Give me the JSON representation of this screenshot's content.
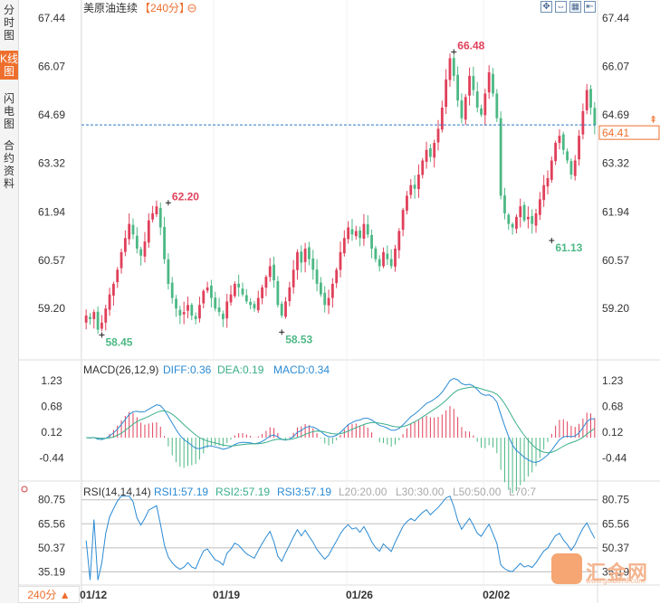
{
  "sidebar": {
    "tabs": [
      {
        "label": "分时图",
        "active": false
      },
      {
        "label": "K线图",
        "active": true
      },
      {
        "label": "闪电图",
        "active": false
      },
      {
        "label": "合约资料",
        "active": false
      }
    ],
    "period_button": "240分 ▲"
  },
  "header": {
    "instrument": "美原油连续",
    "period": "【240分】",
    "period_icon": "circle-minus-icon"
  },
  "toolbar": {
    "icons": [
      "fullscreen-icon",
      "arrows-icon",
      "chart-settings-icon",
      "back-icon"
    ]
  },
  "colors": {
    "up": "#e0405a",
    "down": "#4cb884",
    "accent": "#ee6f2d",
    "diff": "#2a8ad4",
    "dea": "#3aae8a",
    "rsi": "#2a8ad4",
    "price_line": "#2a78c8"
  },
  "logo": {
    "name": "汇金网",
    "url": "www.gold678.com"
  },
  "chart_data": [
    {
      "type": "candlestick",
      "title": "美原油连续【240分】",
      "y_ticks": [
        "67.44",
        "66.07",
        "64.69",
        "63.32",
        "61.94",
        "60.57",
        "59.20"
      ],
      "ylim": [
        58.0,
        67.44
      ],
      "x_ticks": [
        "01/12",
        "01/19",
        "01/26",
        "02/02"
      ],
      "current_price": "64.41",
      "annotations": [
        {
          "label": "58.45",
          "type": "low"
        },
        {
          "label": "62.20",
          "type": "high"
        },
        {
          "label": "58.53",
          "type": "low"
        },
        {
          "label": "66.48",
          "type": "high"
        },
        {
          "label": "61.13",
          "type": "low"
        }
      ],
      "closes": [
        59.0,
        58.9,
        59.1,
        58.6,
        58.8,
        59.2,
        59.6,
        59.9,
        60.3,
        60.8,
        61.2,
        61.6,
        61.3,
        60.9,
        60.7,
        61.1,
        61.7,
        61.9,
        62.1,
        61.5,
        60.6,
        59.9,
        59.5,
        59.2,
        59.0,
        59.1,
        59.3,
        59.0,
        58.9,
        59.3,
        59.7,
        59.8,
        59.5,
        59.2,
        59.1,
        58.9,
        59.4,
        59.6,
        59.9,
        59.8,
        59.6,
        59.4,
        59.3,
        59.2,
        59.5,
        59.8,
        60.1,
        60.4,
        60.0,
        59.3,
        59.0,
        59.4,
        59.8,
        60.3,
        60.8,
        60.5,
        60.9,
        60.6,
        60.3,
        59.9,
        59.6,
        59.3,
        59.5,
        59.9,
        60.3,
        60.8,
        61.2,
        61.5,
        61.3,
        61.4,
        61.2,
        61.6,
        61.3,
        60.9,
        60.6,
        60.4,
        60.8,
        60.6,
        60.4,
        60.9,
        61.4,
        62.0,
        62.4,
        62.7,
        62.6,
        63.0,
        63.4,
        63.7,
        63.5,
        63.9,
        64.3,
        64.9,
        65.7,
        66.3,
        65.8,
        65.1,
        64.6,
        65.2,
        65.8,
        65.4,
        64.9,
        64.7,
        65.3,
        65.9,
        65.3,
        64.6,
        62.4,
        61.9,
        61.6,
        61.5,
        61.8,
        62.1,
        61.7,
        61.8,
        61.6,
        61.9,
        62.3,
        62.7,
        62.9,
        63.4,
        63.9,
        64.1,
        63.7,
        63.4,
        63.0,
        63.4,
        64.1,
        64.8,
        65.4,
        64.9,
        64.41
      ],
      "macd": {
        "label": "MACD(26,12,9)",
        "diff_label": "DIFF:0.36",
        "dea_label": "DEA:0.19",
        "macd_label": "MACD:0.34",
        "y_ticks": [
          "1.23",
          "0.68",
          "0.12",
          "-0.44"
        ],
        "ylim": [
          -0.9,
          1.45
        ]
      },
      "rsi": {
        "label": "RSI(14,14,14)",
        "rsi1_label": "RSI1:57.19",
        "rsi2_label": "RSI2:57.19",
        "rsi3_label": "RSI3:57.19",
        "l20": "L20:20.00",
        "l30": "L30:30.00",
        "l50": "L50:50.00",
        "l70": "L70:7",
        "y_ticks": [
          "80.75",
          "65.56",
          "50.37",
          "35.19"
        ],
        "ylim": [
          28,
          84
        ]
      }
    }
  ]
}
